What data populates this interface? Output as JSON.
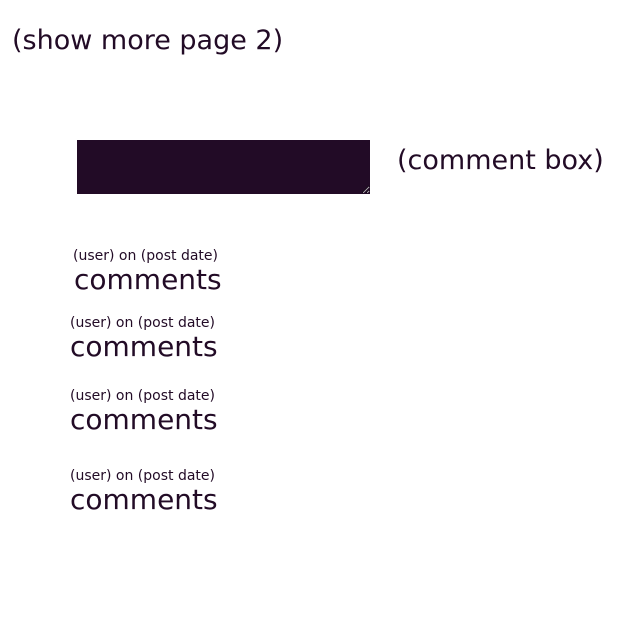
{
  "pagination": {
    "show_more_label": "(show more page 2)"
  },
  "comment_input": {
    "label": "(comment box)",
    "value": ""
  },
  "comments": [
    {
      "meta": "(user) on (post date)",
      "text": "comments"
    },
    {
      "meta": "(user) on (post date)",
      "text": "comments"
    },
    {
      "meta": "(user) on (post date)",
      "text": "comments"
    },
    {
      "meta": "(user) on (post date)",
      "text": "comments"
    }
  ],
  "colors": {
    "text": "#220b26",
    "comment_box_fill": "#220b26",
    "background": "#ffffff"
  }
}
